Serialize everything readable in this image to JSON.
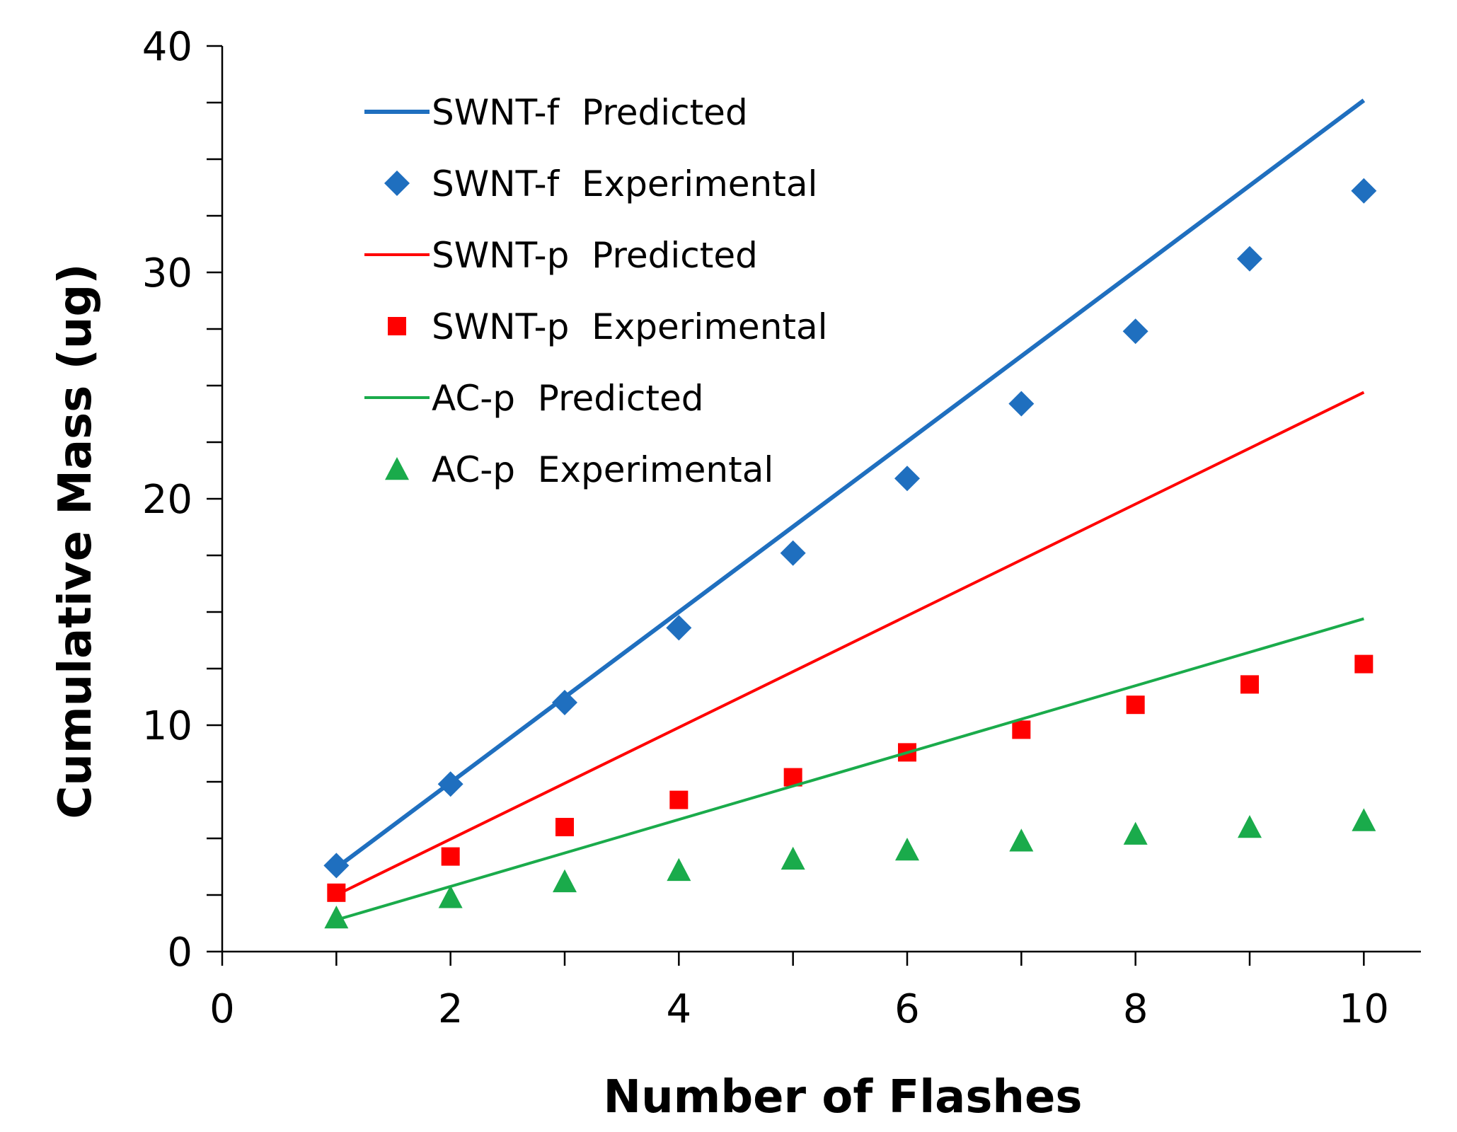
{
  "chart_data": {
    "type": "line",
    "title": "",
    "xlabel": "Number of Flashes",
    "ylabel": "Cumulative Mass (ug)",
    "xlim": [
      0,
      10.5
    ],
    "ylim": [
      0,
      40
    ],
    "x_ticks": [
      0,
      2,
      4,
      6,
      8,
      10
    ],
    "y_ticks": [
      0,
      10,
      20,
      30,
      40
    ],
    "y_minor_step": 2.5,
    "grid": false,
    "legend_position": "top-left",
    "series": [
      {
        "name": "SWNT-f  Predicted",
        "kind": "line",
        "color": "#1f6fbf",
        "x": [
          1,
          10
        ],
        "y": [
          3.7,
          37.6
        ]
      },
      {
        "name": "SWNT-f  Experimental",
        "kind": "scatter",
        "marker": "diamond",
        "color": "#1f6fbf",
        "x": [
          1,
          2,
          3,
          4,
          5,
          6,
          7,
          8,
          9,
          10
        ],
        "y": [
          3.8,
          7.4,
          11.0,
          14.3,
          17.6,
          20.9,
          24.2,
          27.4,
          30.6,
          33.6
        ]
      },
      {
        "name": "SWNT-p  Predicted",
        "kind": "line",
        "color": "#ff0000",
        "x": [
          1,
          10
        ],
        "y": [
          2.5,
          24.7
        ]
      },
      {
        "name": "SWNT-p  Experimental",
        "kind": "scatter",
        "marker": "square",
        "color": "#ff0000",
        "x": [
          1,
          2,
          3,
          4,
          5,
          6,
          7,
          8,
          9,
          10
        ],
        "y": [
          2.6,
          4.2,
          5.5,
          6.7,
          7.7,
          8.8,
          9.8,
          10.9,
          11.8,
          12.7
        ]
      },
      {
        "name": "AC-p  Predicted",
        "kind": "line",
        "color": "#1aab4b",
        "x": [
          1,
          10
        ],
        "y": [
          1.4,
          14.7
        ]
      },
      {
        "name": "AC-p  Experimental",
        "kind": "scatter",
        "marker": "triangle",
        "color": "#1aab4b",
        "x": [
          1,
          2,
          3,
          4,
          5,
          6,
          7,
          8,
          9,
          10
        ],
        "y": [
          1.5,
          2.4,
          3.1,
          3.6,
          4.1,
          4.5,
          4.9,
          5.2,
          5.5,
          5.8
        ]
      }
    ]
  }
}
